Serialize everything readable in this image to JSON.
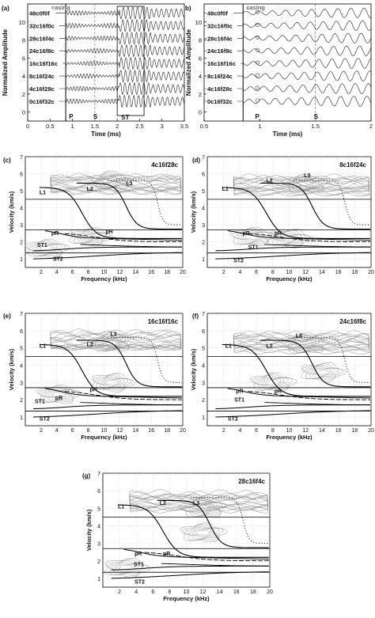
{
  "figure": {
    "panels": [
      "(a)",
      "b)",
      "(c)",
      "(d)",
      "(e)",
      "(f)",
      "(g)"
    ]
  },
  "chart_data": [
    {
      "id": "a",
      "type": "line",
      "panel_label": "(a)",
      "xlabel": "Time (ms)",
      "ylabel": "Normalized Amplitude",
      "xlim": [
        0,
        3.5
      ],
      "ylim": [
        -1,
        12
      ],
      "x_ticks": [
        "0",
        "0.5",
        "1",
        "1.5",
        "2",
        "2.5",
        "3",
        "3.5"
      ],
      "y_ticks": [
        "0",
        "2",
        "4",
        "6",
        "8",
        "10"
      ],
      "series": [
        {
          "name": "48c0f0f",
          "offset": 11
        },
        {
          "name": "32c16f0c",
          "offset": 9.6
        },
        {
          "name": "28c16f4c",
          "offset": 8.2
        },
        {
          "name": "24c16f8c",
          "offset": 6.8
        },
        {
          "name": "16c16f16c",
          "offset": 5.4
        },
        {
          "name": "8c16f24c",
          "offset": 4.0
        },
        {
          "name": "4c16f28c",
          "offset": 2.6
        },
        {
          "name": "0c16f32c",
          "offset": 1.2
        }
      ],
      "annotations": [
        "casing",
        "P",
        "S",
        "ST"
      ],
      "markers": {
        "casing_time": 0.85,
        "P_time": 0.85,
        "S_time": 1.5,
        "ST_window": [
          2.0,
          2.6
        ]
      }
    },
    {
      "id": "b",
      "type": "line",
      "panel_label": "b)",
      "xlabel": "Time (ms)",
      "ylabel": "Normalized Amplitude",
      "xlim": [
        0.5,
        2.0
      ],
      "ylim": [
        -1,
        12
      ],
      "x_ticks": [
        "0.5",
        "1",
        "1.5",
        "2"
      ],
      "y_ticks": [
        "0",
        "2",
        "4",
        "6",
        "8",
        "10"
      ],
      "series": [
        {
          "name": "48c0f0f",
          "offset": 11
        },
        {
          "name": "32c16f0c",
          "offset": 9.6
        },
        {
          "name": "28c16f4c",
          "offset": 8.2
        },
        {
          "name": "24c16f8c",
          "offset": 6.8
        },
        {
          "name": "16c16f16c",
          "offset": 5.4
        },
        {
          "name": "8c16f24c",
          "offset": 4.0
        },
        {
          "name": "4c16f28c",
          "offset": 2.6
        },
        {
          "name": "0c16f32c",
          "offset": 1.2
        }
      ],
      "annotations": [
        "casing",
        "P",
        "S"
      ],
      "markers": {
        "casing_time": 0.85,
        "P_time": 0.93,
        "S_time": 1.5
      }
    },
    {
      "id": "c",
      "type": "scatter",
      "panel_label": "(c)",
      "title": "4c16f28c",
      "xlabel": "Frequency (kHz)",
      "ylabel": "Velocity (km/s)",
      "xlim": [
        0,
        20
      ],
      "ylim": [
        0.5,
        7
      ],
      "x_ticks": [
        "2",
        "4",
        "6",
        "8",
        "10",
        "12",
        "14",
        "16",
        "18",
        "20"
      ],
      "y_ticks": [
        "1",
        "2",
        "3",
        "4",
        "5",
        "6",
        "7"
      ],
      "mode_labels": [
        {
          "text": "L1",
          "x": 1.8,
          "y": 4.8
        },
        {
          "text": "L2",
          "x": 7.8,
          "y": 5.0
        },
        {
          "text": "L3",
          "x": 12.8,
          "y": 5.3
        },
        {
          "text": "pR",
          "x": 3.3,
          "y": 2.4
        },
        {
          "text": "pR",
          "x": 10.2,
          "y": 2.5
        },
        {
          "text": "ST1",
          "x": 1.5,
          "y": 1.7
        },
        {
          "text": "ST2",
          "x": 3.5,
          "y": 0.9
        }
      ],
      "hlines": [
        4.5,
        2.7,
        1.35
      ],
      "contour_centers": [
        {
          "x": 11,
          "y": 5.6
        },
        {
          "x": 2.7,
          "y": 1.6
        },
        {
          "x": 8.2,
          "y": 2.3
        }
      ]
    },
    {
      "id": "d",
      "type": "scatter",
      "panel_label": "(d)",
      "title": "8c16f24c",
      "xlabel": "Frequency (kHz)",
      "ylabel": "Velocity (km/s)",
      "xlim": [
        0,
        20
      ],
      "ylim": [
        0.5,
        7
      ],
      "x_ticks": [
        "2",
        "4",
        "6",
        "8",
        "10",
        "12",
        "14",
        "16",
        "18",
        "20"
      ],
      "y_ticks": [
        "1",
        "2",
        "3",
        "4",
        "5",
        "6",
        "7"
      ],
      "mode_labels": [
        {
          "text": "L1",
          "x": 1.8,
          "y": 5.0
        },
        {
          "text": "L2",
          "x": 7.2,
          "y": 5.5
        },
        {
          "text": "L3",
          "x": 11.8,
          "y": 5.8
        },
        {
          "text": "pR",
          "x": 4.3,
          "y": 2.4
        },
        {
          "text": "pR",
          "x": 8.2,
          "y": 2.4
        },
        {
          "text": "ST1",
          "x": 5.0,
          "y": 1.6
        },
        {
          "text": "ST2",
          "x": 3.2,
          "y": 0.8
        }
      ],
      "hlines": [
        4.5,
        2.7,
        1.35
      ],
      "contour_centers": [
        {
          "x": 12,
          "y": 5.4
        },
        {
          "x": 5.5,
          "y": 2.3
        },
        {
          "x": 10,
          "y": 2.2
        }
      ]
    },
    {
      "id": "e",
      "type": "scatter",
      "panel_label": "(e)",
      "title": "16c16f16c",
      "xlabel": "Frequency (kHz)",
      "ylabel": "Velocity (km/s)",
      "xlim": [
        0,
        20
      ],
      "ylim": [
        0.5,
        7
      ],
      "x_ticks": [
        "2",
        "4",
        "6",
        "8",
        "10",
        "12",
        "14",
        "16",
        "18",
        "20"
      ],
      "y_ticks": [
        "1",
        "2",
        "3",
        "4",
        "5",
        "6",
        "7"
      ],
      "mode_labels": [
        {
          "text": "L1",
          "x": 1.8,
          "y": 5.0
        },
        {
          "text": "L2",
          "x": 7.8,
          "y": 5.1
        },
        {
          "text": "L3",
          "x": 10.8,
          "y": 5.7
        },
        {
          "text": "pR",
          "x": 3.8,
          "y": 2.0
        },
        {
          "text": "pR",
          "x": 8.2,
          "y": 2.5
        },
        {
          "text": "ST1",
          "x": 1.2,
          "y": 1.8
        },
        {
          "text": "ST2",
          "x": 1.8,
          "y": 0.8
        }
      ],
      "hlines": [
        4.5,
        2.7,
        1.35
      ],
      "contour_centers": [
        {
          "x": 11,
          "y": 5.3
        },
        {
          "x": 4.2,
          "y": 2.3
        },
        {
          "x": 11,
          "y": 3.0
        }
      ]
    },
    {
      "id": "f",
      "type": "scatter",
      "panel_label": "(f)",
      "title": "24c16f8c",
      "xlabel": "Frequency (kHz)",
      "ylabel": "Velocity (km/s)",
      "xlim": [
        0,
        20
      ],
      "ylim": [
        0.5,
        7
      ],
      "x_ticks": [
        "2",
        "4",
        "6",
        "8",
        "10",
        "12",
        "14",
        "16",
        "18",
        "20"
      ],
      "y_ticks": [
        "1",
        "2",
        "3",
        "4",
        "5",
        "6",
        "7"
      ],
      "mode_labels": [
        {
          "text": "L1",
          "x": 2.2,
          "y": 5.0
        },
        {
          "text": "L2",
          "x": 7.2,
          "y": 5.0
        },
        {
          "text": "L3",
          "x": 10.8,
          "y": 5.6
        },
        {
          "text": "pR",
          "x": 3.5,
          "y": 2.4
        },
        {
          "text": "pR",
          "x": 8.2,
          "y": 2.4
        },
        {
          "text": "ST1",
          "x": 3.3,
          "y": 1.9
        },
        {
          "text": "ST2",
          "x": 2.5,
          "y": 0.8
        }
      ],
      "hlines": [
        4.5,
        2.7,
        1.35
      ],
      "contour_centers": [
        {
          "x": 12,
          "y": 5.2
        },
        {
          "x": 8,
          "y": 3.0
        },
        {
          "x": 14,
          "y": 3.6
        }
      ]
    },
    {
      "id": "g",
      "type": "scatter",
      "panel_label": "(g)",
      "title": "28c16f4c",
      "xlabel": "Frequency (kHz)",
      "ylabel": "Velocity (km/s)",
      "xlim": [
        0,
        20
      ],
      "ylim": [
        0.5,
        7
      ],
      "x_ticks": [
        "2",
        "4",
        "6",
        "8",
        "10",
        "12",
        "14",
        "16",
        "18",
        "20"
      ],
      "y_ticks": [
        "1",
        "2",
        "3",
        "4",
        "5",
        "6",
        "7"
      ],
      "mode_labels": [
        {
          "text": "L1",
          "x": 1.8,
          "y": 5.0
        },
        {
          "text": "L2",
          "x": 6.8,
          "y": 5.2
        },
        {
          "text": "L3",
          "x": 10.8,
          "y": 5.2
        },
        {
          "text": "pR",
          "x": 3.8,
          "y": 2.3
        },
        {
          "text": "pR",
          "x": 7.2,
          "y": 2.3
        },
        {
          "text": "ST1",
          "x": 3.7,
          "y": 1.7
        },
        {
          "text": "ST2",
          "x": 3.8,
          "y": 0.7
        }
      ],
      "hlines": [
        4.5,
        2.7,
        1.35
      ],
      "contour_centers": [
        {
          "x": 12,
          "y": 5.0
        },
        {
          "x": 12,
          "y": 3.6
        },
        {
          "x": 2.8,
          "y": 1.6
        }
      ]
    }
  ]
}
